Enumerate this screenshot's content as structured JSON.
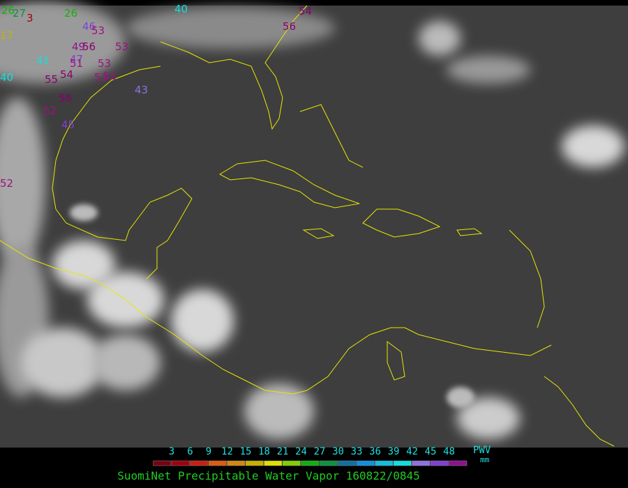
{
  "map": {
    "stations": [
      26,
      27,
      3,
      26,
      40,
      54,
      56,
      46,
      53,
      17,
      53,
      49,
      56,
      47,
      41,
      51,
      53,
      40,
      55,
      54,
      53,
      52,
      43,
      56,
      52,
      45,
      52
    ]
  },
  "colorbar": {
    "ticks": [
      3,
      6,
      9,
      12,
      15,
      18,
      21,
      24,
      27,
      30,
      33,
      36,
      39,
      42,
      45,
      48
    ],
    "unit": "PWV",
    "unit_sub": "mm"
  },
  "caption": "SuomiNet Precipitable Water Vapor 160822/0845"
}
